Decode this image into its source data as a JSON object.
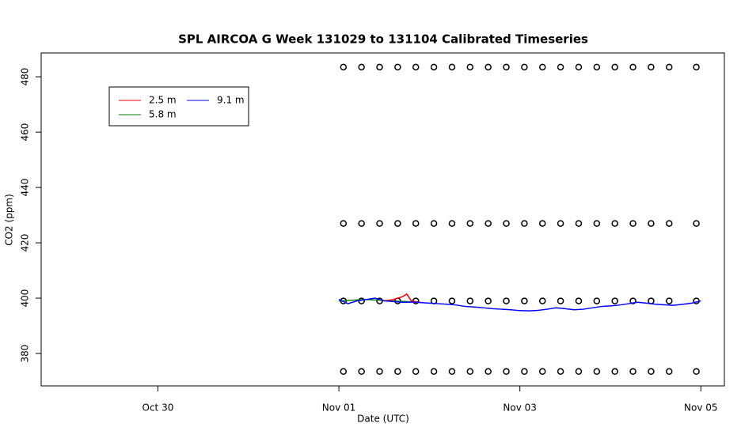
{
  "chart_data": {
    "type": "line",
    "title": "SPL AIRCOA G  Week 131029 to 131104  Calibrated Timeseries",
    "x_label": "Date (UTC)",
    "y_label": "CO2 (ppm)",
    "xlim": [
      -0.29,
      7.26
    ],
    "ylim": [
      368.3,
      488.6
    ],
    "xticks": [
      {
        "value": 1,
        "label": "Oct 30"
      },
      {
        "value": 3,
        "label": "Nov 01"
      },
      {
        "value": 5,
        "label": "Nov 03"
      },
      {
        "value": 7,
        "label": "Nov 05"
      }
    ],
    "yticks": [
      380,
      400,
      420,
      440,
      460,
      480
    ],
    "legend": "top-left",
    "series": [
      {
        "name": "2.5 m",
        "color": "#ff0000",
        "x": [
          3.5,
          3.6,
          3.7,
          3.75,
          3.8,
          3.9
        ],
        "values": [
          399,
          399.5,
          400.5,
          401.5,
          399,
          398.5
        ]
      },
      {
        "name": "5.8 m",
        "color": "#008000",
        "x": [
          3.0,
          3.3,
          3.6,
          3.9
        ],
        "values": [
          399,
          399.5,
          399,
          398.5
        ]
      },
      {
        "name": "9.1 m",
        "color": "#0000ff",
        "x": [
          3.0,
          3.1,
          3.2,
          3.3,
          3.4,
          3.5,
          3.6,
          3.7,
          3.8,
          3.9,
          4.0,
          4.1,
          4.2,
          4.3,
          4.4,
          4.5,
          4.6,
          4.7,
          4.8,
          4.9,
          5.0,
          5.1,
          5.2,
          5.3,
          5.4,
          5.5,
          5.6,
          5.7,
          5.8,
          5.9,
          6.0,
          6.1,
          6.2,
          6.3,
          6.4,
          6.5,
          6.6,
          6.7,
          6.8,
          6.9,
          7.0
        ],
        "values": [
          399.5,
          398,
          399,
          399.5,
          400,
          399,
          398.8,
          398.5,
          398.6,
          398.4,
          398.2,
          398,
          397.8,
          397.5,
          397,
          396.8,
          396.5,
          396.2,
          396,
          395.8,
          395.5,
          395.4,
          395.6,
          396,
          396.5,
          396.2,
          395.8,
          396,
          396.5,
          397,
          397.2,
          397.5,
          398,
          398.5,
          398.2,
          397.8,
          397.6,
          397.4,
          397.8,
          398.2,
          399
        ]
      }
    ],
    "points_color": "#000000",
    "points_x": [
      3.05,
      3.25,
      3.45,
      3.65,
      3.85,
      4.05,
      4.25,
      4.45,
      4.65,
      4.85,
      5.05,
      5.25,
      5.45,
      5.65,
      5.85,
      6.05,
      6.25,
      6.45,
      6.65,
      6.95
    ],
    "points": [
      {
        "values": [
          483.5,
          483.5,
          483.5,
          483.5,
          483.5,
          483.5,
          483.5,
          483.5,
          483.5,
          483.5,
          483.5,
          483.5,
          483.5,
          483.5,
          483.5,
          483.5,
          483.5,
          483.5,
          483.5,
          483.5
        ]
      },
      {
        "values": [
          427,
          427,
          427,
          427,
          427,
          427,
          427,
          427,
          427,
          427,
          427,
          427,
          427,
          427,
          427,
          427,
          427,
          427,
          427,
          427
        ]
      },
      {
        "values": [
          399,
          399,
          399,
          399,
          399,
          399,
          399,
          399,
          399,
          399,
          399,
          399,
          399,
          399,
          399,
          399,
          399,
          399,
          399,
          399
        ]
      },
      {
        "values": [
          373.5,
          373.5,
          373.5,
          373.5,
          373.5,
          373.5,
          373.5,
          373.5,
          373.5,
          373.5,
          373.5,
          373.5,
          373.5,
          373.5,
          373.5,
          373.5,
          373.5,
          373.5,
          373.5,
          373.5
        ]
      }
    ]
  }
}
